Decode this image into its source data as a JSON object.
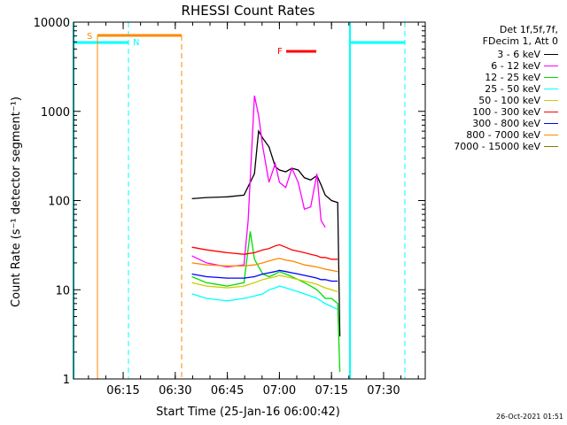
{
  "chart_data": {
    "type": "line",
    "title": "RHESSI Count Rates",
    "xlabel": "Start Time (25-Jan-16 06:00:42)",
    "ylabel": "Count Rate (s⁻¹ detector segment⁻¹)",
    "yscale": "log",
    "ylim": [
      1,
      10000
    ],
    "y_ticks": [
      "1",
      "10",
      "100",
      "1000",
      "10000"
    ],
    "x_range": [
      "06:00:42",
      "07:42:00"
    ],
    "x_ticks": [
      "06:15",
      "06:30",
      "06:45",
      "07:00",
      "07:15",
      "07:30"
    ],
    "legend_header": [
      "Det 1f,5f,7f,",
      "FDecim 1, Att 0"
    ],
    "legend_placement": "right",
    "series": [
      {
        "name": "3 - 6 keV",
        "color": "#000000",
        "values": [
          [
            6.58,
            105
          ],
          [
            6.65,
            108
          ],
          [
            6.75,
            110
          ],
          [
            6.83,
            115
          ],
          [
            6.88,
            200
          ],
          [
            6.9,
            600
          ],
          [
            6.92,
            500
          ],
          [
            6.95,
            400
          ],
          [
            6.98,
            240
          ],
          [
            7.0,
            220
          ],
          [
            7.03,
            210
          ],
          [
            7.06,
            230
          ],
          [
            7.09,
            220
          ],
          [
            7.12,
            180
          ],
          [
            7.15,
            170
          ],
          [
            7.18,
            190
          ],
          [
            7.2,
            150
          ],
          [
            7.22,
            115
          ],
          [
            7.25,
            100
          ],
          [
            7.28,
            95
          ],
          [
            7.29,
            3
          ]
        ]
      },
      {
        "name": "6 - 12 keV",
        "color": "#ff00ff",
        "values": [
          [
            6.58,
            24
          ],
          [
            6.65,
            20
          ],
          [
            6.75,
            18
          ],
          [
            6.83,
            19
          ],
          [
            6.85,
            60
          ],
          [
            6.88,
            1500
          ],
          [
            6.9,
            900
          ],
          [
            6.92,
            400
          ],
          [
            6.95,
            160
          ],
          [
            6.98,
            260
          ],
          [
            7.0,
            160
          ],
          [
            7.03,
            140
          ],
          [
            7.06,
            230
          ],
          [
            7.09,
            160
          ],
          [
            7.12,
            80
          ],
          [
            7.15,
            85
          ],
          [
            7.18,
            200
          ],
          [
            7.2,
            60
          ],
          [
            7.22,
            50
          ]
        ]
      },
      {
        "name": "12 - 25 keV",
        "color": "#00dd00",
        "values": [
          [
            6.58,
            14
          ],
          [
            6.65,
            12
          ],
          [
            6.75,
            11
          ],
          [
            6.83,
            12
          ],
          [
            6.86,
            45
          ],
          [
            6.88,
            22
          ],
          [
            6.92,
            15
          ],
          [
            6.95,
            14
          ],
          [
            6.98,
            15
          ],
          [
            7.0,
            16
          ],
          [
            7.03,
            15
          ],
          [
            7.06,
            14
          ],
          [
            7.09,
            13
          ],
          [
            7.12,
            12
          ],
          [
            7.15,
            11
          ],
          [
            7.18,
            10
          ],
          [
            7.2,
            9
          ],
          [
            7.22,
            8
          ],
          [
            7.25,
            8
          ],
          [
            7.28,
            7
          ],
          [
            7.29,
            1.2
          ]
        ]
      },
      {
        "name": "25 - 50 keV",
        "color": "#00ffff",
        "values": [
          [
            6.58,
            9
          ],
          [
            6.65,
            8
          ],
          [
            6.75,
            7.5
          ],
          [
            6.83,
            8
          ],
          [
            6.88,
            8.5
          ],
          [
            6.92,
            9
          ],
          [
            6.95,
            10
          ],
          [
            6.98,
            10.5
          ],
          [
            7.0,
            11
          ],
          [
            7.03,
            10.5
          ],
          [
            7.06,
            10
          ],
          [
            7.09,
            9.5
          ],
          [
            7.12,
            9
          ],
          [
            7.15,
            8.5
          ],
          [
            7.18,
            8
          ],
          [
            7.2,
            7.5
          ],
          [
            7.22,
            7
          ],
          [
            7.25,
            6.5
          ],
          [
            7.28,
            6
          ]
        ]
      },
      {
        "name": "50 - 100 keV",
        "color": "#cccc00",
        "values": [
          [
            6.58,
            12
          ],
          [
            6.65,
            11
          ],
          [
            6.75,
            10.5
          ],
          [
            6.83,
            11
          ],
          [
            6.88,
            12
          ],
          [
            6.92,
            13
          ],
          [
            6.95,
            13.5
          ],
          [
            6.98,
            14
          ],
          [
            7.0,
            14.5
          ],
          [
            7.03,
            14
          ],
          [
            7.06,
            13.5
          ],
          [
            7.09,
            13
          ],
          [
            7.12,
            12.5
          ],
          [
            7.15,
            12
          ],
          [
            7.18,
            11.5
          ],
          [
            7.2,
            11
          ],
          [
            7.22,
            10.5
          ],
          [
            7.25,
            10
          ],
          [
            7.28,
            9.5
          ]
        ]
      },
      {
        "name": "100 - 300 keV",
        "color": "#ff0000",
        "values": [
          [
            6.58,
            30
          ],
          [
            6.65,
            28
          ],
          [
            6.75,
            26
          ],
          [
            6.83,
            25
          ],
          [
            6.88,
            26
          ],
          [
            6.92,
            28
          ],
          [
            6.95,
            29
          ],
          [
            6.98,
            31
          ],
          [
            7.0,
            32
          ],
          [
            7.03,
            30
          ],
          [
            7.06,
            28
          ],
          [
            7.09,
            27
          ],
          [
            7.12,
            26
          ],
          [
            7.15,
            25
          ],
          [
            7.18,
            24
          ],
          [
            7.2,
            23
          ],
          [
            7.22,
            23
          ],
          [
            7.25,
            22
          ],
          [
            7.28,
            22
          ]
        ]
      },
      {
        "name": "300 - 800 keV",
        "color": "#0000ff",
        "values": [
          [
            6.58,
            15
          ],
          [
            6.65,
            14
          ],
          [
            6.75,
            13.5
          ],
          [
            6.83,
            13.5
          ],
          [
            6.88,
            14
          ],
          [
            6.92,
            15
          ],
          [
            6.95,
            15.5
          ],
          [
            6.98,
            16
          ],
          [
            7.0,
            16.5
          ],
          [
            7.03,
            16
          ],
          [
            7.06,
            15.5
          ],
          [
            7.09,
            15
          ],
          [
            7.12,
            14.5
          ],
          [
            7.15,
            14
          ],
          [
            7.18,
            13.5
          ],
          [
            7.2,
            13
          ],
          [
            7.22,
            13
          ],
          [
            7.25,
            12.5
          ],
          [
            7.28,
            12.5
          ]
        ]
      },
      {
        "name": "800 - 7000 keV",
        "color": "#ff8800",
        "values": [
          [
            6.58,
            20
          ],
          [
            6.65,
            19
          ],
          [
            6.75,
            18.5
          ],
          [
            6.83,
            18.5
          ],
          [
            6.88,
            19
          ],
          [
            6.92,
            20
          ],
          [
            6.95,
            21
          ],
          [
            6.98,
            22
          ],
          [
            7.0,
            22.5
          ],
          [
            7.03,
            21.5
          ],
          [
            7.06,
            21
          ],
          [
            7.09,
            20
          ],
          [
            7.12,
            19
          ],
          [
            7.15,
            18.5
          ],
          [
            7.18,
            18
          ],
          [
            7.2,
            17.5
          ],
          [
            7.22,
            17
          ],
          [
            7.25,
            16.5
          ],
          [
            7.28,
            16
          ]
        ]
      },
      {
        "name": "7000 - 15000 keV",
        "color": "#808000",
        "values": []
      }
    ],
    "annotations": [
      {
        "label": "S",
        "color": "#ff8800"
      },
      {
        "label": "N",
        "color": "#00ffff"
      },
      {
        "label": "F",
        "color": "#ff0000"
      }
    ]
  },
  "datestamp": "26-Oct-2021 01:51"
}
